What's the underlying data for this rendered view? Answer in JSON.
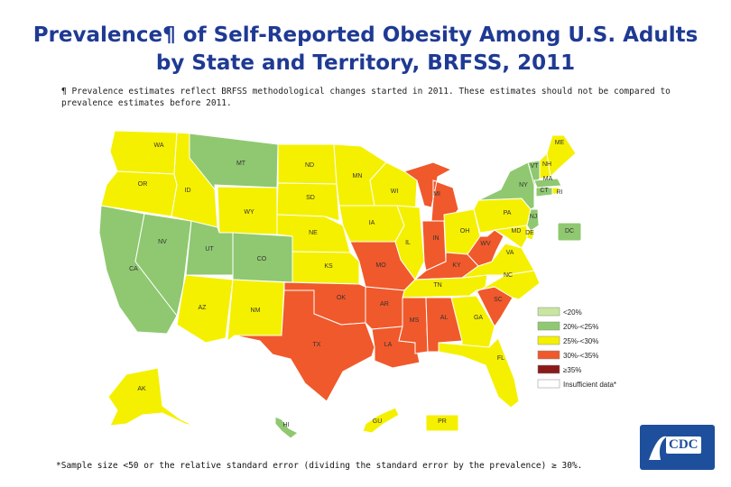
{
  "title": {
    "line1": "Prevalence¶ of Self-Reported Obesity Among U.S. Adults",
    "line2": "by State and Territory, BRFSS, 2011"
  },
  "note": {
    "line1": "¶ Prevalence estimates reflect BRFSS methodological changes started in 2011. These estimates should not be compared to",
    "line2": "prevalence estimates before 2011."
  },
  "footnote": "*Sample size <50 or the relative standard error (dividing the standard error by the prevalence) ≥ 30%.",
  "legend": [
    {
      "label": "<20%",
      "color": "#c8e6a0"
    },
    {
      "label": "20%-<25%",
      "color": "#8fc870"
    },
    {
      "label": "25%-<30%",
      "color": "#f5f000"
    },
    {
      "label": "30%-<35%",
      "color": "#f0592b"
    },
    {
      "label": "≥35%",
      "color": "#8b1a1a"
    },
    {
      "label": "Insufficient data*",
      "color": "#ffffff"
    }
  ],
  "states": {
    "WA": {
      "label": "WA",
      "category": "25%-<30%"
    },
    "OR": {
      "label": "OR",
      "category": "25%-<30%"
    },
    "CA": {
      "label": "CA",
      "category": "20%-<25%"
    },
    "NV": {
      "label": "NV",
      "category": "20%-<25%"
    },
    "ID": {
      "label": "ID",
      "category": "25%-<30%"
    },
    "MT": {
      "label": "MT",
      "category": "20%-<25%"
    },
    "WY": {
      "label": "WY",
      "category": "25%-<30%"
    },
    "UT": {
      "label": "UT",
      "category": "20%-<25%"
    },
    "CO": {
      "label": "CO",
      "category": "20%-<25%"
    },
    "AZ": {
      "label": "AZ",
      "category": "25%-<30%"
    },
    "NM": {
      "label": "NM",
      "category": "25%-<30%"
    },
    "ND": {
      "label": "ND",
      "category": "25%-<30%"
    },
    "SD": {
      "label": "SD",
      "category": "25%-<30%"
    },
    "NE": {
      "label": "NE",
      "category": "25%-<30%"
    },
    "KS": {
      "label": "KS",
      "category": "25%-<30%"
    },
    "OK": {
      "label": "OK",
      "category": "30%-<35%"
    },
    "TX": {
      "label": "TX",
      "category": "30%-<35%"
    },
    "MN": {
      "label": "MN",
      "category": "25%-<30%"
    },
    "IA": {
      "label": "IA",
      "category": "25%-<30%"
    },
    "MO": {
      "label": "MO",
      "category": "30%-<35%"
    },
    "AR": {
      "label": "AR",
      "category": "30%-<35%"
    },
    "LA": {
      "label": "LA",
      "category": "30%-<35%"
    },
    "WI": {
      "label": "WI",
      "category": "25%-<30%"
    },
    "IL": {
      "label": "IL",
      "category": "25%-<30%"
    },
    "MI": {
      "label": "MI",
      "category": "30%-<35%"
    },
    "IN": {
      "label": "IN",
      "category": "30%-<35%"
    },
    "OH": {
      "label": "OH",
      "category": "25%-<30%"
    },
    "KY": {
      "label": "KY",
      "category": "30%-<35%"
    },
    "TN": {
      "label": "TN",
      "category": "25%-<30%"
    },
    "MS": {
      "label": "MS",
      "category": "30%-<35%"
    },
    "AL": {
      "label": "AL",
      "category": "30%-<35%"
    },
    "GA": {
      "label": "GA",
      "category": "25%-<30%"
    },
    "FL": {
      "label": "FL",
      "category": "25%-<30%"
    },
    "SC": {
      "label": "SC",
      "category": "30%-<35%"
    },
    "NC": {
      "label": "NC",
      "category": "25%-<30%"
    },
    "VA": {
      "label": "VA",
      "category": "25%-<30%"
    },
    "WV": {
      "label": "WV",
      "category": "30%-<35%"
    },
    "PA": {
      "label": "PA",
      "category": "25%-<30%"
    },
    "NY": {
      "label": "NY",
      "category": "20%-<25%"
    },
    "VT": {
      "label": "VT",
      "category": "20%-<25%"
    },
    "NH": {
      "label": "NH",
      "category": "25%-<30%"
    },
    "ME": {
      "label": "ME",
      "category": "25%-<30%"
    },
    "MA": {
      "label": "MA",
      "category": "20%-<25%"
    },
    "RI": {
      "label": "RI",
      "category": "25%-<30%"
    },
    "CT": {
      "label": "CT",
      "category": "20%-<25%"
    },
    "NJ": {
      "label": "NJ",
      "category": "20%-<25%"
    },
    "DE": {
      "label": "DE",
      "category": "25%-<30%"
    },
    "MD": {
      "label": "MD",
      "category": "25%-<30%"
    },
    "DC": {
      "label": "DC",
      "category": "20%-<25%"
    },
    "AK": {
      "label": "AK",
      "category": "25%-<30%"
    },
    "HI": {
      "label": "HI",
      "category": "20%-<25%"
    },
    "GU": {
      "label": "GU",
      "category": "25%-<30%"
    },
    "PR": {
      "label": "PR",
      "category": "25%-<30%"
    }
  },
  "logo": {
    "text": "CDC"
  }
}
